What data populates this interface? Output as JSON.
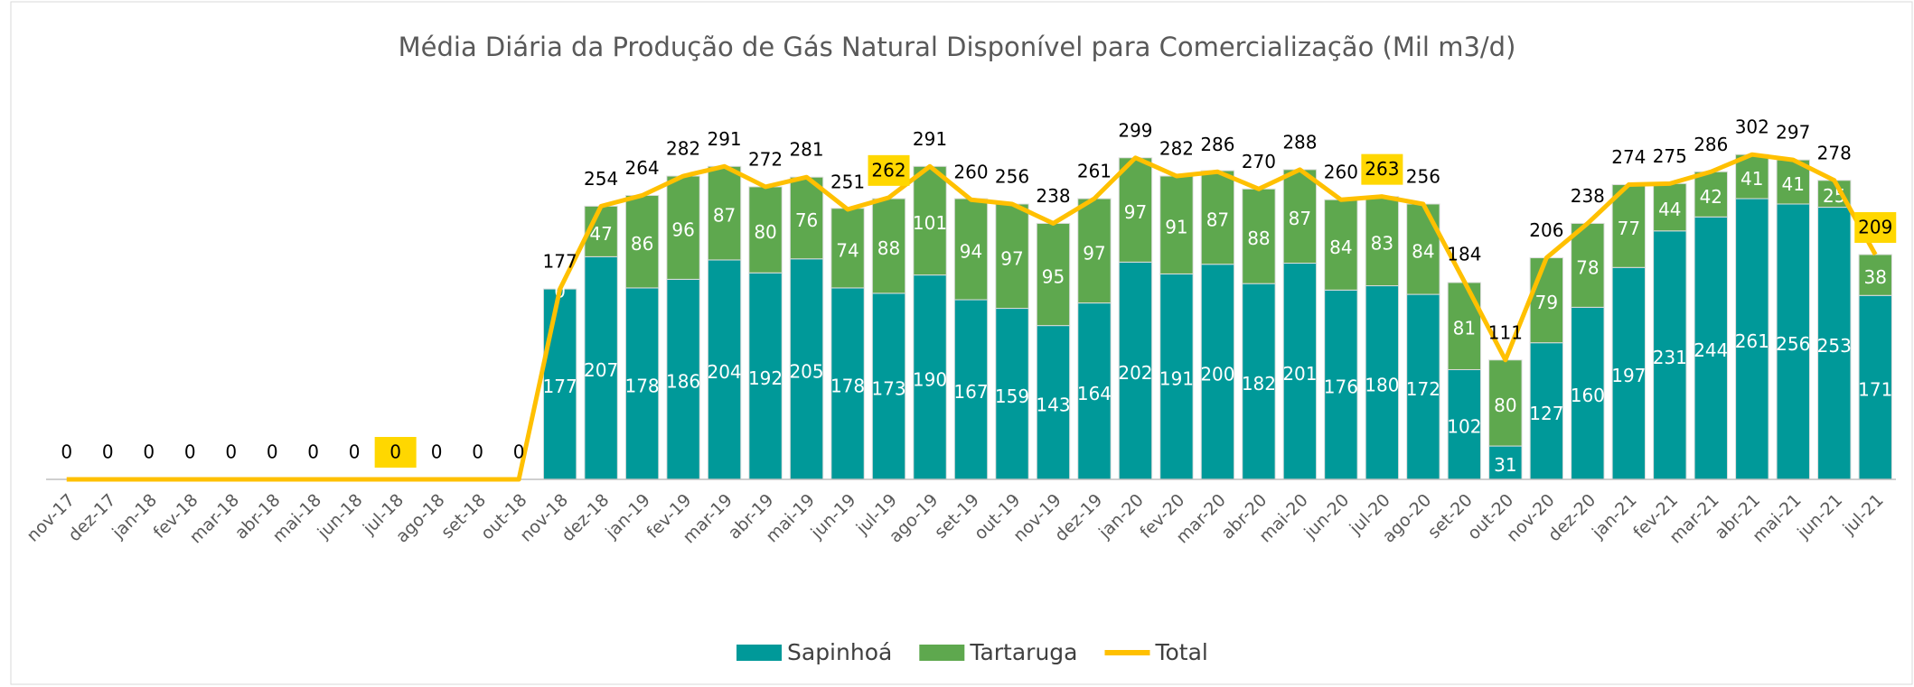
{
  "chart_data": {
    "type": "stacked_bar_line",
    "title": "Média Diária da Produção de Gás Natural Disponível para Comercialização (Mil m3/d)",
    "categories": [
      "nov-17",
      "dez-17",
      "jan-18",
      "fev-18",
      "mar-18",
      "abr-18",
      "mai-18",
      "jun-18",
      "jul-18",
      "ago-18",
      "set-18",
      "out-18",
      "nov-18",
      "dez-18",
      "jan-19",
      "fev-19",
      "mar-19",
      "abr-19",
      "mai-19",
      "jun-19",
      "jul-19",
      "ago-19",
      "set-19",
      "out-19",
      "nov-19",
      "dez-19",
      "jan-20",
      "fev-20",
      "mar-20",
      "abr-20",
      "mai-20",
      "jun-20",
      "jul-20",
      "ago-20",
      "set-20",
      "out-20",
      "nov-20",
      "dez-20",
      "jan-21",
      "fev-21",
      "mar-21",
      "abr-21",
      "mai-21",
      "jun-21",
      "jul-21"
    ],
    "series": [
      {
        "name": "Sapinhoá",
        "color": "#009999",
        "values": [
          null,
          null,
          null,
          null,
          null,
          null,
          null,
          null,
          null,
          null,
          null,
          null,
          177,
          207,
          178,
          186,
          204,
          192,
          205,
          178,
          173,
          190,
          167,
          159,
          143,
          164,
          202,
          191,
          200,
          182,
          201,
          176,
          180,
          172,
          102,
          31,
          127,
          160,
          197,
          231,
          244,
          261,
          256,
          253,
          171
        ]
      },
      {
        "name": "Tartaruga",
        "color": "#5ea84e",
        "values": [
          null,
          null,
          null,
          null,
          null,
          null,
          null,
          null,
          null,
          null,
          null,
          null,
          0,
          47,
          86,
          96,
          87,
          80,
          76,
          74,
          88,
          101,
          94,
          97,
          95,
          97,
          97,
          91,
          87,
          88,
          87,
          84,
          83,
          84,
          81,
          80,
          79,
          78,
          77,
          44,
          42,
          41,
          41,
          25,
          38
        ]
      },
      {
        "name": "Total",
        "color": "#ffc000",
        "values": [
          0,
          0,
          0,
          0,
          0,
          0,
          0,
          0,
          0,
          0,
          0,
          0,
          177,
          254,
          264,
          282,
          291,
          272,
          281,
          251,
          262,
          291,
          260,
          256,
          238,
          261,
          299,
          282,
          286,
          270,
          288,
          260,
          263,
          256,
          184,
          111,
          206,
          238,
          274,
          275,
          286,
          302,
          297,
          278,
          209
        ]
      }
    ],
    "ylim": [
      0,
      350
    ],
    "highlight": [
      "jul-18",
      "jul-19",
      "jul-20",
      "jul-21"
    ],
    "highlight_color": "#ffd700"
  }
}
